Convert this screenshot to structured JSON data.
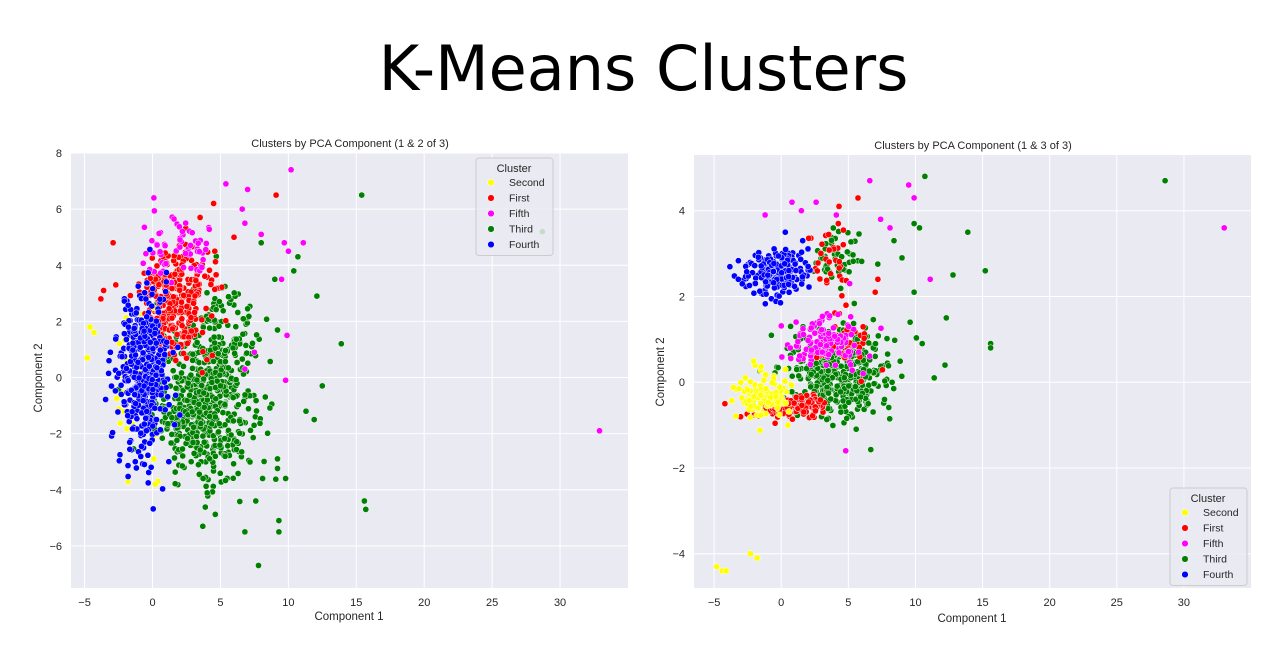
{
  "page_title": "K-Means Clusters",
  "colors": {
    "Second": "#ffff00",
    "First": "#ff0000",
    "Fifth": "#ff00ff",
    "Third": "#008000",
    "Fourth": "#0000ff",
    "background": "#eaeaf2",
    "grid": "#ffffff"
  },
  "chart_data": [
    {
      "type": "scatter",
      "title": "Clusters by PCA Component (1 & 2 of 3)",
      "xlabel": "Component 1",
      "ylabel": "Component 2",
      "xlim": [
        -6,
        35
      ],
      "ylim": [
        -7.5,
        8
      ],
      "xticks": [
        -5,
        0,
        5,
        10,
        15,
        20,
        25,
        30
      ],
      "yticks": [
        -6,
        -4,
        -2,
        0,
        2,
        4,
        6,
        8
      ],
      "grid": true,
      "legend": {
        "title": "Cluster",
        "placement": "upper-right",
        "entries": [
          "Second",
          "First",
          "Fifth",
          "Third",
          "Fourth"
        ]
      },
      "series": [
        {
          "name": "Second",
          "clusters": [
            {
              "cx": -1.3,
              "cy": 0.2,
              "sx": 0.9,
              "sy": 1.3,
              "n": 40
            }
          ],
          "points": [
            [
              -4.6,
              1.8
            ],
            [
              -4.3,
              1.6
            ],
            [
              -4.8,
              0.7
            ],
            [
              -1.8,
              -3.7
            ],
            [
              0.4,
              -3.7
            ],
            [
              0.2,
              -3.8
            ],
            [
              -0.4,
              -2.8
            ],
            [
              0.1,
              -2.9
            ]
          ]
        },
        {
          "name": "First",
          "clusters": [
            {
              "cx": 1.6,
              "cy": 2.7,
              "sx": 1.3,
              "sy": 0.9,
              "n": 320
            }
          ],
          "points": [
            [
              -2.9,
              4.8
            ],
            [
              -3.6,
              3.1
            ],
            [
              -3.8,
              2.8
            ],
            [
              -2.7,
              3.3
            ],
            [
              9.1,
              6.5
            ],
            [
              4.5,
              6.2
            ],
            [
              3.5,
              5.7
            ],
            [
              6.0,
              5.0
            ]
          ]
        },
        {
          "name": "Fifth",
          "clusters": [
            {
              "cx": 1.8,
              "cy": 4.6,
              "sx": 1.3,
              "sy": 0.6,
              "n": 60
            }
          ],
          "points": [
            [
              0.1,
              6.4
            ],
            [
              5.4,
              6.9
            ],
            [
              7.0,
              6.7
            ],
            [
              10.2,
              7.4
            ],
            [
              6.6,
              6.0
            ],
            [
              6.8,
              5.5
            ],
            [
              8.0,
              5.1
            ],
            [
              9.7,
              4.8
            ],
            [
              11.1,
              4.8
            ],
            [
              10.0,
              4.5
            ],
            [
              9.5,
              3.5
            ],
            [
              9.9,
              1.5
            ],
            [
              7.5,
              0.9
            ],
            [
              9.8,
              -0.1
            ],
            [
              6.8,
              0.3
            ],
            [
              32.9,
              -1.9
            ]
          ]
        },
        {
          "name": "Third",
          "clusters": [
            {
              "cx": 3.8,
              "cy": -0.9,
              "sx": 1.8,
              "sy": 1.3,
              "n": 600
            },
            {
              "cx": 5.5,
              "cy": 1.8,
              "sx": 1.4,
              "sy": 0.9,
              "n": 80
            }
          ],
          "points": [
            [
              15.4,
              6.5
            ],
            [
              28.7,
              5.2
            ],
            [
              13.9,
              1.2
            ],
            [
              12.1,
              2.9
            ],
            [
              12.5,
              -0.3
            ],
            [
              11.9,
              -1.5
            ],
            [
              11.3,
              -1.2
            ],
            [
              9.2,
              -2.9
            ],
            [
              9.8,
              -3.6
            ],
            [
              8.1,
              -3.6
            ],
            [
              7.6,
              -4.4
            ],
            [
              6.8,
              -5.5
            ],
            [
              9.3,
              -5.1
            ],
            [
              9.3,
              -5.5
            ],
            [
              7.8,
              -6.7
            ],
            [
              3.7,
              -5.3
            ],
            [
              15.6,
              -4.4
            ],
            [
              15.7,
              -4.7
            ],
            [
              10.7,
              4.3
            ],
            [
              10.4,
              3.8
            ],
            [
              9.0,
              3.5
            ],
            [
              8.0,
              4.8
            ]
          ]
        },
        {
          "name": "Fourth",
          "clusters": [
            {
              "cx": -0.7,
              "cy": 0.4,
              "sx": 1.0,
              "sy": 1.5,
              "n": 420
            }
          ],
          "points": [
            [
              -3.1,
              0.9
            ],
            [
              -3.2,
              0.6
            ],
            [
              -0.1,
              -3.2
            ],
            [
              1.2,
              -3.0
            ],
            [
              -0.6,
              -3.1
            ]
          ]
        }
      ]
    },
    {
      "type": "scatter",
      "title": "Clusters by PCA Component (1 & 3 of 3)",
      "xlabel": "Component 1",
      "ylabel": "Component 2",
      "xlim": [
        -6.5,
        35
      ],
      "ylim": [
        -4.8,
        5.3
      ],
      "xticks": [
        -5,
        0,
        5,
        10,
        15,
        20,
        25,
        30
      ],
      "yticks": [
        -4,
        -2,
        0,
        2,
        4
      ],
      "grid": true,
      "legend": {
        "title": "Cluster",
        "placement": "lower-right",
        "entries": [
          "Second",
          "First",
          "Fifth",
          "Third",
          "Fourth"
        ]
      },
      "series": [
        {
          "name": "Second",
          "clusters": [
            {
              "cx": -1.5,
              "cy": -0.3,
              "sx": 1.0,
              "sy": 0.25,
              "n": 120
            }
          ],
          "points": [
            [
              -4.8,
              -4.3
            ],
            [
              -4.4,
              -4.4
            ],
            [
              -4.1,
              -4.4
            ],
            [
              -2.3,
              -4.0
            ],
            [
              -1.8,
              -4.1
            ],
            [
              0.3,
              0.3
            ]
          ]
        },
        {
          "name": "First",
          "clusters": [
            {
              "cx": 0.6,
              "cy": -0.55,
              "sx": 1.2,
              "sy": 0.12,
              "n": 200
            },
            {
              "cx": 3.6,
              "cy": 3.0,
              "sx": 0.8,
              "sy": 0.4,
              "n": 30
            },
            {
              "cx": 4.6,
              "cy": 1.0,
              "sx": 1.4,
              "sy": 0.4,
              "n": 40
            }
          ],
          "points": [
            [
              -4.2,
              -0.5
            ],
            [
              4.3,
              4.1
            ],
            [
              7.2,
              2.4
            ],
            [
              7.0,
              2.1
            ]
          ]
        },
        {
          "name": "Fifth",
          "clusters": [
            {
              "cx": 3.4,
              "cy": 0.9,
              "sx": 1.4,
              "sy": 0.3,
              "n": 120
            }
          ],
          "points": [
            [
              -1.2,
              3.9
            ],
            [
              0.8,
              4.2
            ],
            [
              1.5,
              4.0
            ],
            [
              2.6,
              4.2
            ],
            [
              4.1,
              3.9
            ],
            [
              6.6,
              4.7
            ],
            [
              9.5,
              4.6
            ],
            [
              9.9,
              4.3
            ],
            [
              7.4,
              3.8
            ],
            [
              8.1,
              3.6
            ],
            [
              11.1,
              2.4
            ],
            [
              5.1,
              2.3
            ],
            [
              4.8,
              -1.6
            ],
            [
              33.0,
              3.6
            ],
            [
              6.1,
              0.2
            ]
          ]
        },
        {
          "name": "Third",
          "clusters": [
            {
              "cx": 4.3,
              "cy": 0.2,
              "sx": 1.9,
              "sy": 0.5,
              "n": 450
            },
            {
              "cx": 4.2,
              "cy": 2.9,
              "sx": 1.0,
              "sy": 0.4,
              "n": 50
            }
          ],
          "points": [
            [
              10.7,
              4.8
            ],
            [
              10.3,
              3.6
            ],
            [
              13.9,
              3.5
            ],
            [
              9.9,
              3.7
            ],
            [
              9.0,
              2.9
            ],
            [
              8.4,
              3.3
            ],
            [
              12.8,
              2.5
            ],
            [
              15.2,
              2.6
            ],
            [
              9.9,
              2.1
            ],
            [
              12.3,
              1.5
            ],
            [
              15.6,
              0.9
            ],
            [
              15.6,
              0.8
            ],
            [
              12.2,
              0.4
            ],
            [
              11.4,
              0.1
            ],
            [
              9.6,
              1.4
            ],
            [
              10.5,
              0.9
            ],
            [
              28.6,
              4.7
            ]
          ]
        },
        {
          "name": "Fourth",
          "clusters": [
            {
              "cx": -0.3,
              "cy": 2.6,
              "sx": 1.1,
              "sy": 0.25,
              "n": 230
            }
          ],
          "points": [
            [
              -3.2,
              2.4
            ],
            [
              0.3,
              3.5
            ],
            [
              1.6,
              3.3
            ],
            [
              2.0,
              2.7
            ]
          ]
        }
      ]
    }
  ]
}
